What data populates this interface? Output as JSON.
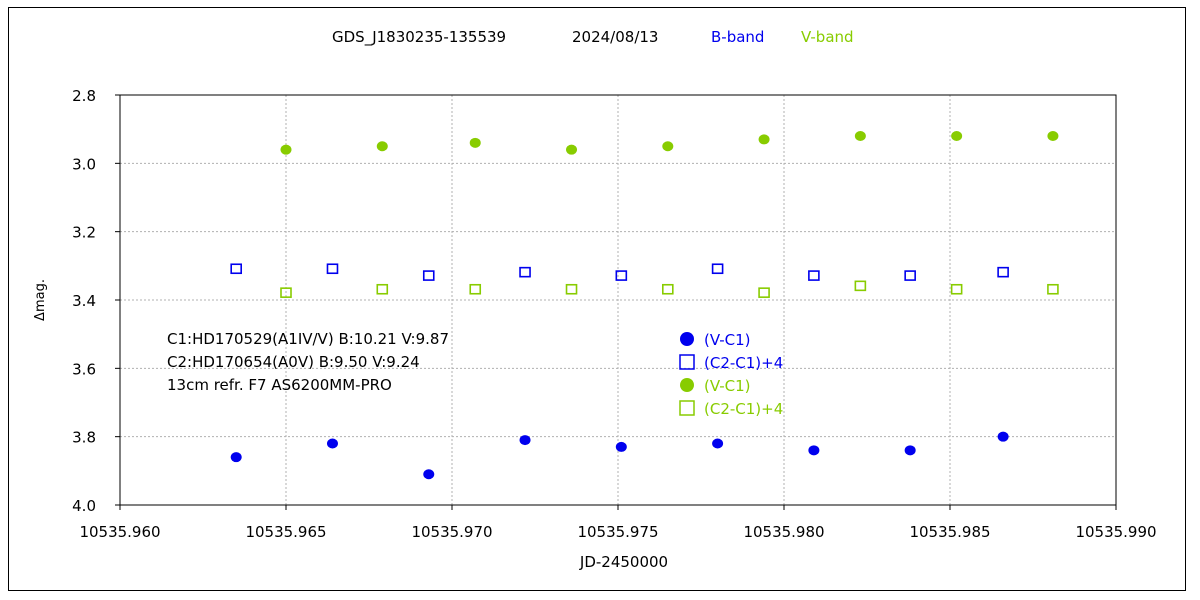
{
  "chart_data": {
    "type": "scatter",
    "title": {
      "object": "GDS_J1830235-135539",
      "date": "2024/08/13",
      "band1": "B-band",
      "band2": "V-band"
    },
    "xlabel": "JD-2450000",
    "ylabel": "Δmag.",
    "xlim": [
      10535.96,
      10535.99
    ],
    "ylim": [
      4.0,
      2.8
    ],
    "y_inverted": true,
    "grid": true,
    "x_ticks": [
      "10535.960",
      "10535.965",
      "10535.970",
      "10535.975",
      "10535.980",
      "10535.985",
      "10535.990"
    ],
    "x_tick_values": [
      10535.96,
      10535.965,
      10535.97,
      10535.975,
      10535.98,
      10535.985,
      10535.99
    ],
    "y_ticks": [
      "2.8",
      "3.0",
      "3.2",
      "3.4",
      "3.6",
      "3.8",
      "4.0"
    ],
    "y_tick_values": [
      2.8,
      3.0,
      3.2,
      3.4,
      3.6,
      3.8,
      4.0
    ],
    "annotations": [
      "C1:HD170529(A1IV/V)  B:10.21  V:9.87",
      "C2:HD170654(A0V)  B:9.50  V:9.24",
      "13cm refr. F7 AS6200MM-PRO"
    ],
    "legend_position": "center",
    "colors": {
      "blue": "#0000ee",
      "green": "#88cc00"
    },
    "series": [
      {
        "name": "(V-C1)",
        "band": "B-band",
        "marker": "filled-circle",
        "color": "#0000ee",
        "x": [
          10535.9635,
          10535.9664,
          10535.9693,
          10535.9722,
          10535.9751,
          10535.978,
          10535.9809,
          10535.9838,
          10535.9866
        ],
        "y": [
          3.86,
          3.82,
          3.91,
          3.81,
          3.83,
          3.82,
          3.84,
          3.84,
          3.8
        ]
      },
      {
        "name": "(C2-C1)+4",
        "band": "B-band",
        "marker": "open-square",
        "color": "#0000ee",
        "x": [
          10535.9635,
          10535.9664,
          10535.9693,
          10535.9722,
          10535.9751,
          10535.978,
          10535.9809,
          10535.9838,
          10535.9866
        ],
        "y": [
          3.31,
          3.31,
          3.33,
          3.32,
          3.33,
          3.31,
          3.33,
          3.33,
          3.32
        ]
      },
      {
        "name": "(V-C1)",
        "band": "V-band",
        "marker": "filled-circle",
        "color": "#88cc00",
        "x": [
          10535.965,
          10535.9679,
          10535.9707,
          10535.9736,
          10535.9765,
          10535.9794,
          10535.9823,
          10535.9852,
          10535.9881
        ],
        "y": [
          2.96,
          2.95,
          2.94,
          2.96,
          2.95,
          2.93,
          2.92,
          2.92,
          2.92
        ]
      },
      {
        "name": "(C2-C1)+4",
        "band": "V-band",
        "marker": "open-square",
        "color": "#88cc00",
        "x": [
          10535.965,
          10535.9679,
          10535.9707,
          10535.9736,
          10535.9765,
          10535.9794,
          10535.9823,
          10535.9852,
          10535.9881
        ],
        "y": [
          3.38,
          3.37,
          3.37,
          3.37,
          3.37,
          3.38,
          3.36,
          3.37,
          3.37
        ]
      }
    ]
  }
}
